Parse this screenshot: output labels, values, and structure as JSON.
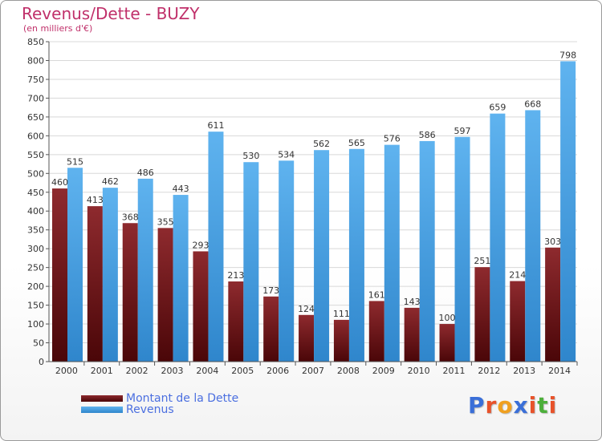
{
  "chart_data": {
    "type": "bar",
    "title": "Revenus/Dette - BUZY",
    "subtitle": "(en milliers d'€)",
    "categories": [
      "2000",
      "2001",
      "2002",
      "2003",
      "2004",
      "2005",
      "2006",
      "2007",
      "2008",
      "2009",
      "2010",
      "2011",
      "2012",
      "2013",
      "2014"
    ],
    "series": [
      {
        "name": "Montant de la Dette",
        "color": "#7a1a1e",
        "values": [
          460,
          413,
          368,
          355,
          293,
          213,
          173,
          124,
          111,
          161,
          143,
          100,
          251,
          214,
          303
        ]
      },
      {
        "name": "Revenus",
        "color": "#4ea6e6",
        "values": [
          515,
          462,
          486,
          443,
          611,
          530,
          534,
          562,
          565,
          576,
          586,
          597,
          659,
          668,
          798
        ]
      }
    ],
    "ylim": [
      0,
      850
    ],
    "ytick_step": 50,
    "grid": true,
    "legend_position": "bottom-left"
  },
  "logo": {
    "letters": [
      "P",
      "r",
      "o",
      "x",
      "i",
      "t",
      "i"
    ],
    "colors": [
      "#3a6fd8",
      "#e8522a",
      "#f0a020",
      "#3a6fd8",
      "#e8522a",
      "#4caf3a",
      "#e8522a"
    ]
  }
}
